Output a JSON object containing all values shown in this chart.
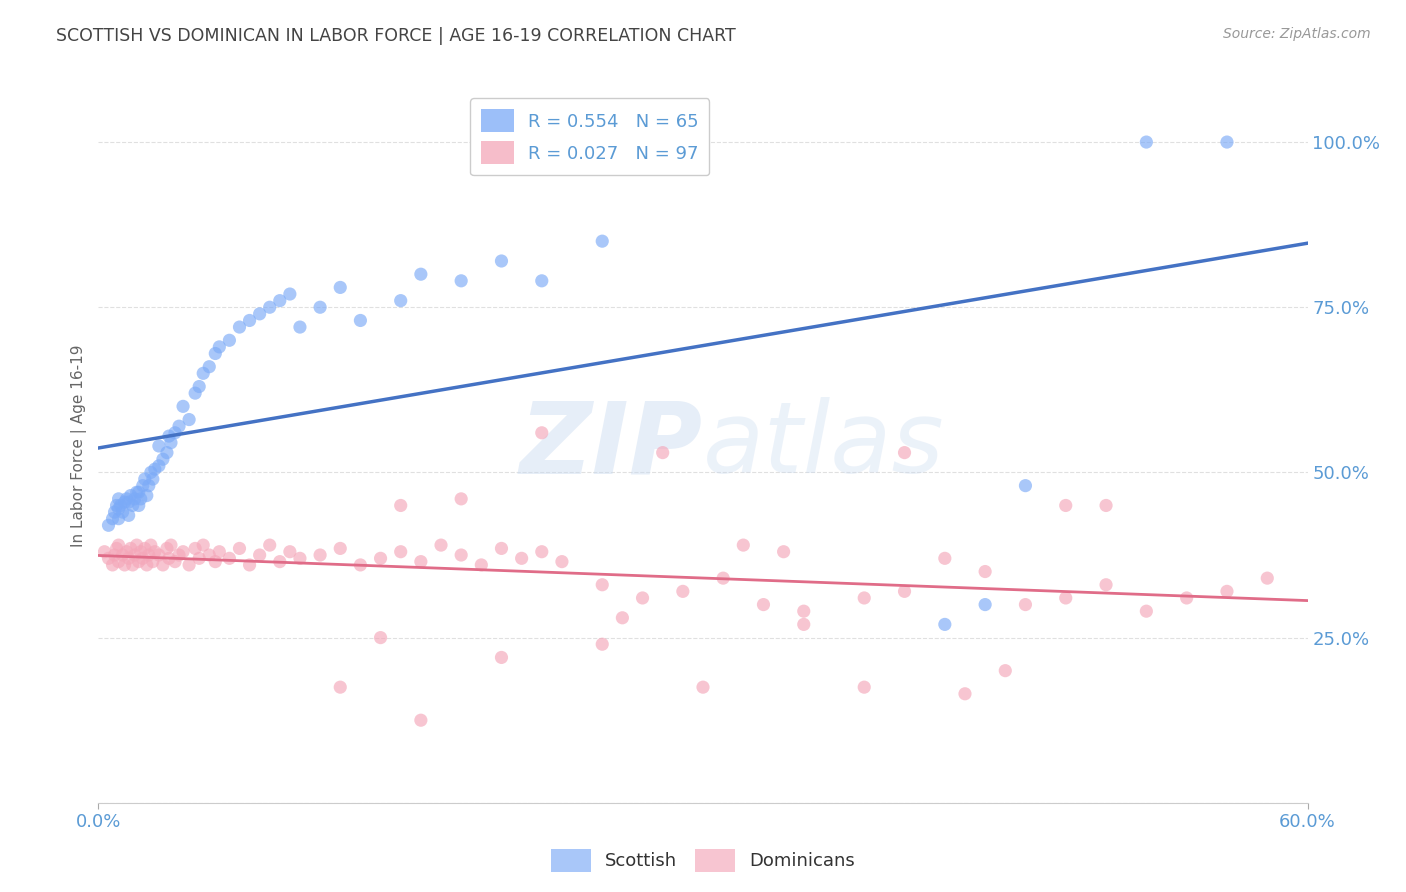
{
  "title": "SCOTTISH VS DOMINICAN IN LABOR FORCE | AGE 16-19 CORRELATION CHART",
  "source": "Source: ZipAtlas.com",
  "ylabel": "In Labor Force | Age 16-19",
  "xlim": [
    0.0,
    0.6
  ],
  "ylim": [
    0.0,
    1.08
  ],
  "ytick_vals": [
    0.0,
    0.25,
    0.5,
    0.75,
    1.0
  ],
  "ytick_labels": [
    "",
    "25.0%",
    "50.0%",
    "75.0%",
    "100.0%"
  ],
  "xtick_vals": [
    0.0,
    0.6
  ],
  "xtick_labels": [
    "0.0%",
    "60.0%"
  ],
  "legend_r_entries": [
    {
      "label": "R = 0.554   N = 65",
      "color": "#7baaf7"
    },
    {
      "label": "R = 0.027   N = 97",
      "color": "#f4a7b9"
    }
  ],
  "bottom_legend": [
    "Scottish",
    "Dominicans"
  ],
  "watermark": "ZIPatlas",
  "title_color": "#444444",
  "axis_label_color": "#5b9bd5",
  "blue_scatter_color": "#7baaf7",
  "pink_scatter_color": "#f4a7b9",
  "blue_line_color": "#4472c4",
  "pink_line_color": "#e06c88",
  "grid_color": "#e0e0e0",
  "background_color": "#ffffff",
  "scottish_x": [
    0.005,
    0.007,
    0.008,
    0.009,
    0.01,
    0.01,
    0.01,
    0.011,
    0.012,
    0.013,
    0.014,
    0.015,
    0.015,
    0.016,
    0.017,
    0.018,
    0.019,
    0.02,
    0.02,
    0.021,
    0.022,
    0.023,
    0.024,
    0.025,
    0.026,
    0.027,
    0.028,
    0.03,
    0.03,
    0.032,
    0.034,
    0.035,
    0.036,
    0.038,
    0.04,
    0.042,
    0.045,
    0.048,
    0.05,
    0.052,
    0.055,
    0.058,
    0.06,
    0.065,
    0.07,
    0.075,
    0.08,
    0.085,
    0.09,
    0.095,
    0.1,
    0.11,
    0.12,
    0.13,
    0.15,
    0.16,
    0.18,
    0.2,
    0.22,
    0.25,
    0.42,
    0.44,
    0.46,
    0.52,
    0.56
  ],
  "scottish_y": [
    0.42,
    0.43,
    0.44,
    0.45,
    0.43,
    0.445,
    0.46,
    0.45,
    0.44,
    0.455,
    0.46,
    0.435,
    0.455,
    0.465,
    0.45,
    0.46,
    0.47,
    0.45,
    0.47,
    0.46,
    0.48,
    0.49,
    0.465,
    0.48,
    0.5,
    0.49,
    0.505,
    0.51,
    0.54,
    0.52,
    0.53,
    0.555,
    0.545,
    0.56,
    0.57,
    0.6,
    0.58,
    0.62,
    0.63,
    0.65,
    0.66,
    0.68,
    0.69,
    0.7,
    0.72,
    0.73,
    0.74,
    0.75,
    0.76,
    0.77,
    0.72,
    0.75,
    0.78,
    0.73,
    0.76,
    0.8,
    0.79,
    0.82,
    0.79,
    0.85,
    0.27,
    0.3,
    0.48,
    1.0,
    1.0
  ],
  "dominican_x": [
    0.003,
    0.005,
    0.007,
    0.008,
    0.009,
    0.01,
    0.01,
    0.012,
    0.013,
    0.014,
    0.015,
    0.016,
    0.017,
    0.018,
    0.019,
    0.02,
    0.021,
    0.022,
    0.023,
    0.024,
    0.025,
    0.026,
    0.027,
    0.028,
    0.03,
    0.032,
    0.034,
    0.035,
    0.036,
    0.038,
    0.04,
    0.042,
    0.045,
    0.048,
    0.05,
    0.052,
    0.055,
    0.058,
    0.06,
    0.065,
    0.07,
    0.075,
    0.08,
    0.085,
    0.09,
    0.095,
    0.1,
    0.11,
    0.12,
    0.13,
    0.14,
    0.15,
    0.16,
    0.17,
    0.18,
    0.19,
    0.2,
    0.21,
    0.22,
    0.23,
    0.25,
    0.27,
    0.29,
    0.31,
    0.33,
    0.35,
    0.38,
    0.4,
    0.42,
    0.44,
    0.46,
    0.48,
    0.5,
    0.52,
    0.54,
    0.56,
    0.58,
    0.3,
    0.2,
    0.15,
    0.12,
    0.35,
    0.25,
    0.18,
    0.4,
    0.45,
    0.5,
    0.32,
    0.28,
    0.22,
    0.14,
    0.38,
    0.43,
    0.26,
    0.34,
    0.48,
    0.16
  ],
  "dominican_y": [
    0.38,
    0.37,
    0.36,
    0.375,
    0.385,
    0.365,
    0.39,
    0.375,
    0.36,
    0.38,
    0.37,
    0.385,
    0.36,
    0.375,
    0.39,
    0.365,
    0.38,
    0.37,
    0.385,
    0.36,
    0.375,
    0.39,
    0.365,
    0.38,
    0.375,
    0.36,
    0.385,
    0.37,
    0.39,
    0.365,
    0.375,
    0.38,
    0.36,
    0.385,
    0.37,
    0.39,
    0.375,
    0.365,
    0.38,
    0.37,
    0.385,
    0.36,
    0.375,
    0.39,
    0.365,
    0.38,
    0.37,
    0.375,
    0.385,
    0.36,
    0.37,
    0.38,
    0.365,
    0.39,
    0.375,
    0.36,
    0.385,
    0.37,
    0.38,
    0.365,
    0.33,
    0.31,
    0.32,
    0.34,
    0.3,
    0.29,
    0.31,
    0.32,
    0.37,
    0.35,
    0.3,
    0.31,
    0.33,
    0.29,
    0.31,
    0.32,
    0.34,
    0.175,
    0.22,
    0.45,
    0.175,
    0.27,
    0.24,
    0.46,
    0.53,
    0.2,
    0.45,
    0.39,
    0.53,
    0.56,
    0.25,
    0.175,
    0.165,
    0.28,
    0.38,
    0.45,
    0.125
  ]
}
